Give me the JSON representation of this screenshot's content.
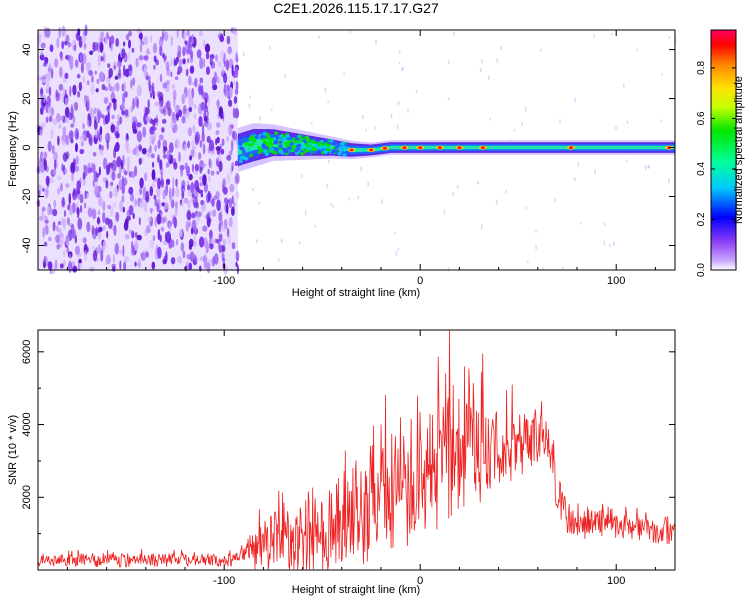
{
  "title": "C2E1.2026.115.17.17.G27",
  "colors": {
    "snr_line": "#ee2222",
    "scatter_purple": "#6a1fe0",
    "axis": "#000000"
  },
  "chart_data": [
    {
      "type": "heatmap",
      "name": "spectrogram",
      "xlabel": "Height of straight line (km)",
      "ylabel": "Frequency (Hz)",
      "xlim": [
        -195,
        130
      ],
      "ylim": [
        -50,
        48
      ],
      "xticks": [
        -100,
        0,
        100
      ],
      "yticks": [
        -40,
        -20,
        0,
        20,
        40
      ],
      "noise_region_x": [
        -195,
        -93
      ],
      "signal_band": {
        "x": [
          -93,
          -85,
          -75,
          -60,
          -45,
          -35,
          -25,
          -15,
          -5,
          0,
          20,
          50,
          80,
          100,
          130
        ],
        "center_hz": [
          -1,
          1,
          2,
          1,
          0,
          -1,
          -1,
          0,
          0,
          0,
          0,
          0,
          0,
          0,
          0
        ],
        "halfwidth_hz": [
          6,
          6,
          5,
          4,
          3,
          2.5,
          2,
          2,
          2,
          2,
          2,
          2,
          2,
          2,
          2
        ]
      },
      "hotspots_x": [
        -35,
        -25,
        -18,
        -8,
        0,
        10,
        20,
        32,
        77,
        127
      ],
      "colorbar": {
        "label": "Normalized spectral amplitude",
        "range": [
          0,
          0.95
        ],
        "ticks": [
          0.0,
          0.2,
          0.4,
          0.6,
          0.8
        ]
      }
    },
    {
      "type": "line",
      "name": "snr",
      "xlabel": "Height of straight line (km)",
      "ylabel": "SNR (10 * v/v)",
      "xlim": [
        -195,
        130
      ],
      "ylim": [
        0,
        6600
      ],
      "xticks": [
        -100,
        0,
        100
      ],
      "yticks": [
        2000,
        4000,
        6000
      ],
      "envelope": {
        "x": [
          -195,
          -160,
          -95,
          -90,
          -80,
          -60,
          -45,
          -40,
          -30,
          -20,
          -10,
          0,
          5,
          10,
          15,
          20,
          30,
          40,
          50,
          60,
          65,
          70,
          75,
          80,
          90,
          95,
          100,
          110,
          120,
          130
        ],
        "mean": [
          250,
          300,
          280,
          450,
          800,
          1000,
          1200,
          1500,
          1800,
          2300,
          2600,
          2300,
          2800,
          3200,
          3600,
          3400,
          3400,
          3300,
          3300,
          3600,
          3800,
          2200,
          1500,
          1200,
          1500,
          1400,
          1300,
          1200,
          1100,
          1000
        ],
        "spread": [
          150,
          180,
          150,
          300,
          700,
          900,
          1100,
          1300,
          1400,
          1500,
          1600,
          1400,
          1500,
          1700,
          1800,
          1400,
          1300,
          1000,
          800,
          700,
          700,
          500,
          400,
          350,
          450,
          400,
          350,
          300,
          300,
          250
        ]
      },
      "peaks": [
        {
          "x": 15,
          "y": 6600
        },
        {
          "x": 32,
          "y": 5950
        },
        {
          "x": 47,
          "y": 5100
        },
        {
          "x": 13,
          "y": 5400
        },
        {
          "x": 25,
          "y": 5000
        },
        {
          "x": -20,
          "y": 4000
        },
        {
          "x": -10,
          "y": 4200
        },
        {
          "x": 0,
          "y": 4350
        }
      ]
    }
  ]
}
